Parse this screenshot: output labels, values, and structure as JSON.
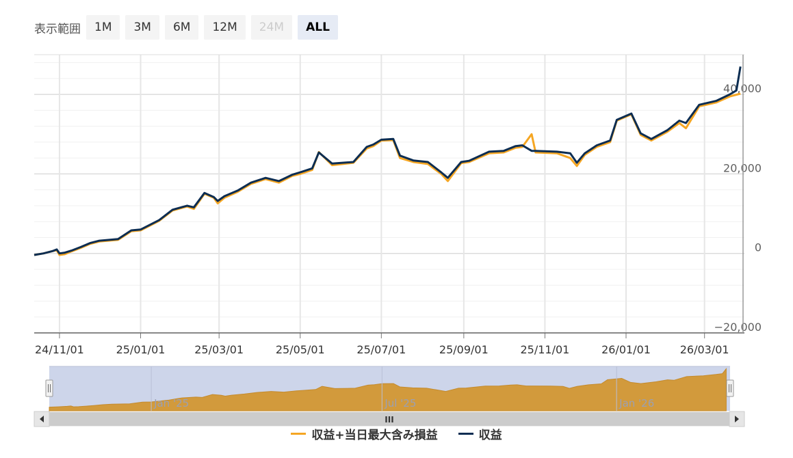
{
  "range_selector": {
    "label": "表示範囲",
    "buttons": [
      {
        "label": "1M",
        "state": "normal"
      },
      {
        "label": "3M",
        "state": "normal"
      },
      {
        "label": "6M",
        "state": "normal"
      },
      {
        "label": "12M",
        "state": "normal"
      },
      {
        "label": "24M",
        "state": "disabled"
      },
      {
        "label": "ALL",
        "state": "selected"
      }
    ]
  },
  "colors": {
    "profit": "#0c2d52",
    "profit_unrealized": "#f5a623",
    "navigator_fill": "#d29a3c",
    "navigator_mask": "#cdd5ea"
  },
  "chart_data": {
    "type": "line",
    "ylim": [
      -20000,
      50000
    ],
    "yticks": [
      {
        "value": -20000,
        "label": "−20,000"
      },
      {
        "value": 0,
        "label": "0"
      },
      {
        "value": 20000,
        "label": "20,000"
      },
      {
        "value": 40000,
        "label": "40,000"
      }
    ],
    "xlim": [
      "2024-10-13",
      "2026-03-31"
    ],
    "xticks": [
      {
        "date": "2024-11-01",
        "label": "24/11/01"
      },
      {
        "date": "2025-01-01",
        "label": "25/01/01"
      },
      {
        "date": "2025-03-01",
        "label": "25/03/01"
      },
      {
        "date": "2025-05-01",
        "label": "25/05/01"
      },
      {
        "date": "2025-07-01",
        "label": "25/07/01"
      },
      {
        "date": "2025-09-01",
        "label": "25/09/01"
      },
      {
        "date": "2025-11-01",
        "label": "25/11/01"
      },
      {
        "date": "2026-01-01",
        "label": "26/01/01"
      },
      {
        "date": "2026-03-01",
        "label": "26/03/01"
      }
    ],
    "grid": true,
    "legend_position": "bottom",
    "series": [
      {
        "name": "収益+当日最大含み損益",
        "points": [
          [
            "2024-10-13",
            -400
          ],
          [
            "2024-10-20",
            0
          ],
          [
            "2024-10-27",
            600
          ],
          [
            "2024-10-30",
            800
          ],
          [
            "2024-11-01",
            -400
          ],
          [
            "2024-11-05",
            -200
          ],
          [
            "2024-11-10",
            500
          ],
          [
            "2024-11-17",
            1400
          ],
          [
            "2024-11-24",
            2400
          ],
          [
            "2024-12-01",
            3000
          ],
          [
            "2024-12-15",
            3400
          ],
          [
            "2024-12-25",
            5600
          ],
          [
            "2025-01-01",
            5800
          ],
          [
            "2025-01-15",
            8200
          ],
          [
            "2025-01-25",
            10800
          ],
          [
            "2025-02-05",
            11800
          ],
          [
            "2025-02-10",
            11200
          ],
          [
            "2025-02-18",
            15000
          ],
          [
            "2025-02-25",
            14000
          ],
          [
            "2025-02-28",
            12600
          ],
          [
            "2025-03-05",
            14000
          ],
          [
            "2025-03-15",
            15500
          ],
          [
            "2025-03-25",
            17500
          ],
          [
            "2025-04-05",
            18700
          ],
          [
            "2025-04-15",
            17800
          ],
          [
            "2025-04-25",
            19500
          ],
          [
            "2025-05-01",
            20000
          ],
          [
            "2025-05-10",
            21000
          ],
          [
            "2025-05-15",
            25500
          ],
          [
            "2025-05-25",
            22200
          ],
          [
            "2025-06-10",
            22800
          ],
          [
            "2025-06-20",
            26400
          ],
          [
            "2025-06-25",
            27000
          ],
          [
            "2025-07-01",
            28400
          ],
          [
            "2025-07-10",
            28500
          ],
          [
            "2025-07-15",
            24000
          ],
          [
            "2025-07-25",
            23000
          ],
          [
            "2025-08-05",
            22500
          ],
          [
            "2025-08-15",
            20000
          ],
          [
            "2025-08-20",
            18200
          ],
          [
            "2025-08-30",
            22700
          ],
          [
            "2025-09-05",
            23000
          ],
          [
            "2025-09-20",
            25200
          ],
          [
            "2025-10-01",
            25400
          ],
          [
            "2025-10-10",
            26600
          ],
          [
            "2025-10-15",
            26800
          ],
          [
            "2025-10-22",
            30000
          ],
          [
            "2025-10-25",
            25400
          ],
          [
            "2025-11-10",
            25200
          ],
          [
            "2025-11-20",
            24000
          ],
          [
            "2025-11-25",
            22000
          ],
          [
            "2025-12-01",
            24800
          ],
          [
            "2025-12-10",
            26800
          ],
          [
            "2025-12-20",
            28000
          ],
          [
            "2025-12-25",
            33400
          ],
          [
            "2026-01-05",
            35000
          ],
          [
            "2026-01-12",
            29800
          ],
          [
            "2026-01-20",
            28400
          ],
          [
            "2026-02-01",
            30600
          ],
          [
            "2026-02-10",
            32800
          ],
          [
            "2026-02-15",
            31500
          ],
          [
            "2026-02-25",
            37000
          ],
          [
            "2026-03-10",
            38000
          ],
          [
            "2026-03-20",
            39500
          ],
          [
            "2026-03-28",
            40200
          ]
        ]
      },
      {
        "name": "収益",
        "points": [
          [
            "2024-10-13",
            -400
          ],
          [
            "2024-10-20",
            0
          ],
          [
            "2024-10-27",
            600
          ],
          [
            "2024-10-30",
            1000
          ],
          [
            "2024-11-01",
            0
          ],
          [
            "2024-11-05",
            200
          ],
          [
            "2024-11-10",
            700
          ],
          [
            "2024-11-17",
            1600
          ],
          [
            "2024-11-24",
            2600
          ],
          [
            "2024-12-01",
            3200
          ],
          [
            "2024-12-15",
            3600
          ],
          [
            "2024-12-25",
            5800
          ],
          [
            "2025-01-01",
            6000
          ],
          [
            "2025-01-15",
            8400
          ],
          [
            "2025-01-25",
            11000
          ],
          [
            "2025-02-05",
            12000
          ],
          [
            "2025-02-10",
            11600
          ],
          [
            "2025-02-18",
            15200
          ],
          [
            "2025-02-25",
            14200
          ],
          [
            "2025-02-28",
            13200
          ],
          [
            "2025-03-05",
            14400
          ],
          [
            "2025-03-15",
            15800
          ],
          [
            "2025-03-25",
            17800
          ],
          [
            "2025-04-05",
            19000
          ],
          [
            "2025-04-15",
            18200
          ],
          [
            "2025-04-25",
            19800
          ],
          [
            "2025-05-01",
            20400
          ],
          [
            "2025-05-10",
            21400
          ],
          [
            "2025-05-15",
            25400
          ],
          [
            "2025-05-25",
            22600
          ],
          [
            "2025-06-10",
            23000
          ],
          [
            "2025-06-20",
            26800
          ],
          [
            "2025-06-25",
            27400
          ],
          [
            "2025-07-01",
            28600
          ],
          [
            "2025-07-10",
            28800
          ],
          [
            "2025-07-15",
            24600
          ],
          [
            "2025-07-25",
            23400
          ],
          [
            "2025-08-05",
            23000
          ],
          [
            "2025-08-15",
            20400
          ],
          [
            "2025-08-20",
            19000
          ],
          [
            "2025-08-30",
            23000
          ],
          [
            "2025-09-05",
            23300
          ],
          [
            "2025-09-20",
            25600
          ],
          [
            "2025-10-01",
            25800
          ],
          [
            "2025-10-10",
            27000
          ],
          [
            "2025-10-15",
            27200
          ],
          [
            "2025-10-22",
            25800
          ],
          [
            "2025-10-25",
            25800
          ],
          [
            "2025-11-10",
            25600
          ],
          [
            "2025-11-20",
            25200
          ],
          [
            "2025-11-25",
            22800
          ],
          [
            "2025-12-01",
            25200
          ],
          [
            "2025-12-10",
            27200
          ],
          [
            "2025-12-20",
            28400
          ],
          [
            "2025-12-25",
            33600
          ],
          [
            "2026-01-05",
            35200
          ],
          [
            "2026-01-12",
            30200
          ],
          [
            "2026-01-20",
            28800
          ],
          [
            "2026-02-01",
            31000
          ],
          [
            "2026-02-10",
            33400
          ],
          [
            "2026-02-15",
            32800
          ],
          [
            "2026-02-25",
            37400
          ],
          [
            "2026-03-10",
            38400
          ],
          [
            "2026-03-20",
            40000
          ],
          [
            "2026-03-25",
            41000
          ],
          [
            "2026-03-28",
            47000
          ]
        ]
      }
    ],
    "navigator": {
      "labels": [
        "Jan '25",
        "Jul '25",
        "Jan '26"
      ],
      "handle_glyph": "III"
    }
  },
  "legend": [
    {
      "label": "収益+当日最大含み損益"
    },
    {
      "label": "収益"
    }
  ]
}
